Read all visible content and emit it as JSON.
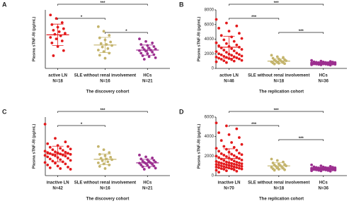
{
  "chart_data": [
    {
      "type": "strip",
      "panel": "A",
      "ylabel": "Plasma sTNF-RI (pg/mL)",
      "xlabel": "The discovery cohort",
      "ylim": [
        2000,
        13500
      ],
      "groups": [
        {
          "name": "active LN",
          "n_label": "N=18",
          "color": "#e31a1c",
          "mean": 8600,
          "sd": 2100,
          "values": [
            12500,
            11800,
            11000,
            10600,
            10100,
            9800,
            9500,
            9200,
            8900,
            8700,
            8400,
            8100,
            7800,
            7400,
            7000,
            6300,
            5500,
            4500
          ]
        },
        {
          "name": "SLE without renal involvement",
          "n_label": "N=16",
          "color": "#c4b46c",
          "mean": 6600,
          "sd": 1500,
          "values": [
            10200,
            9300,
            8500,
            8000,
            7600,
            7200,
            6900,
            6700,
            6500,
            6200,
            5900,
            5600,
            5300,
            5000,
            4600,
            4000
          ]
        },
        {
          "name": "HCs",
          "n_label": "N=21",
          "color": "#9c2f8f",
          "mean": 5600,
          "sd": 1000,
          "values": [
            7800,
            7300,
            7000,
            6700,
            6500,
            6300,
            6100,
            6000,
            5800,
            5700,
            5600,
            5500,
            5400,
            5200,
            5000,
            4900,
            4700,
            4500,
            4300,
            4100,
            3800
          ]
        }
      ],
      "brackets": [
        {
          "from": 0,
          "to": 2,
          "label": "***"
        },
        {
          "from": 0,
          "to": 1,
          "label": "*"
        },
        {
          "from": 1,
          "to": 2,
          "label": "*"
        }
      ]
    },
    {
      "type": "strip",
      "panel": "B",
      "ylabel": "Plasma sTNF-RI (pg/mL)",
      "xlabel": "The replication cohort",
      "ylim": [
        0,
        8000
      ],
      "yticks": [
        0,
        2000,
        4000,
        6000,
        8000
      ],
      "groups": [
        {
          "name": "active LN",
          "n_label": "N=46",
          "color": "#e31a1c",
          "mean": 2900,
          "sd": 1500,
          "values": [
            6700,
            6200,
            5800,
            5500,
            5100,
            4800,
            4500,
            4300,
            4100,
            3900,
            3700,
            3500,
            3400,
            3200,
            3100,
            3000,
            2900,
            2800,
            2700,
            2600,
            2500,
            2400,
            2300,
            2200,
            2100,
            2000,
            1950,
            1900,
            1850,
            1800,
            1700,
            1650,
            1600,
            1550,
            1500,
            1450,
            1400,
            1350,
            1300,
            1250,
            1200,
            1100,
            1050,
            1000,
            900,
            800
          ]
        },
        {
          "name": "SLE without renal involvement",
          "n_label": "N=18",
          "color": "#c4b46c",
          "mean": 1000,
          "sd": 300,
          "values": [
            1800,
            1600,
            1500,
            1400,
            1300,
            1200,
            1150,
            1100,
            1050,
            1000,
            950,
            900,
            850,
            800,
            750,
            700,
            650,
            600
          ]
        },
        {
          "name": "HCs",
          "n_label": "N=36",
          "color": "#9c2f8f",
          "mean": 700,
          "sd": 130,
          "values": [
            1100,
            1000,
            950,
            900,
            880,
            860,
            840,
            820,
            800,
            790,
            780,
            760,
            750,
            740,
            730,
            720,
            710,
            700,
            690,
            680,
            670,
            660,
            650,
            640,
            630,
            620,
            610,
            600,
            590,
            580,
            560,
            540,
            520,
            500,
            480,
            450
          ]
        }
      ],
      "brackets": [
        {
          "from": 0,
          "to": 2,
          "label": "***"
        },
        {
          "from": 0,
          "to": 1,
          "label": "***"
        },
        {
          "from": 1,
          "to": 2,
          "label": "***"
        }
      ]
    },
    {
      "type": "strip",
      "panel": "C",
      "ylabel": "Plasma sTNF-RI (pg/mL)",
      "xlabel": "The discovery cohort",
      "ylim": [
        2000,
        18500
      ],
      "groups": [
        {
          "name": "inactive LN",
          "n_label": "N=42",
          "color": "#e31a1c",
          "mean": 8100,
          "sd": 2200,
          "values": [
            16500,
            12500,
            11500,
            11000,
            10500,
            10200,
            10000,
            9700,
            9500,
            9300,
            9100,
            8900,
            8700,
            8600,
            8500,
            8400,
            8300,
            8200,
            8100,
            8000,
            7900,
            7800,
            7700,
            7600,
            7500,
            7300,
            7100,
            6900,
            6700,
            6500,
            6300,
            6100,
            5900,
            5700,
            5500,
            5300,
            5000,
            4700,
            4400,
            4200,
            4000,
            3800
          ]
        },
        {
          "name": "SLE without renal involvement",
          "n_label": "N=16",
          "color": "#c4b46c",
          "mean": 6600,
          "sd": 1500,
          "values": [
            10200,
            9300,
            8500,
            8000,
            7600,
            7200,
            6900,
            6700,
            6500,
            6200,
            5900,
            5600,
            5300,
            5000,
            4600,
            4000
          ]
        },
        {
          "name": "HCs",
          "n_label": "N=21",
          "color": "#9c2f8f",
          "mean": 5600,
          "sd": 1000,
          "values": [
            7800,
            7300,
            7000,
            6700,
            6500,
            6300,
            6100,
            6000,
            5800,
            5700,
            5600,
            5500,
            5400,
            5200,
            5000,
            4900,
            4700,
            4500,
            4300,
            4100,
            3800
          ]
        }
      ],
      "brackets": [
        {
          "from": 0,
          "to": 2,
          "label": "***"
        },
        {
          "from": 0,
          "to": 1,
          "label": "*"
        }
      ]
    },
    {
      "type": "strip",
      "panel": "D",
      "ylabel": "Plasma sTNF-RI (pg/mL)",
      "xlabel": "The replication cohort",
      "ylim": [
        0,
        6000
      ],
      "yticks": [
        0,
        2000,
        4000,
        6000
      ],
      "groups": [
        {
          "name": "inactive LN",
          "n_label": "N=70",
          "color": "#e31a1c",
          "mean": 1750,
          "sd": 1000,
          "values": [
            5400,
            5100,
            4800,
            4400,
            4200,
            3900,
            3600,
            3400,
            3200,
            3000,
            2900,
            2800,
            2700,
            2600,
            2500,
            2400,
            2300,
            2250,
            2200,
            2150,
            2100,
            2050,
            2000,
            1950,
            1900,
            1850,
            1800,
            1750,
            1700,
            1650,
            1600,
            1550,
            1500,
            1450,
            1400,
            1380,
            1350,
            1320,
            1300,
            1280,
            1250,
            1220,
            1200,
            1180,
            1150,
            1120,
            1100,
            1080,
            1050,
            1020,
            1000,
            980,
            950,
            920,
            900,
            880,
            850,
            820,
            800,
            780,
            750,
            720,
            700,
            680,
            650,
            600,
            550,
            500,
            450,
            350
          ]
        },
        {
          "name": "SLE without renal involvement",
          "n_label": "N=18",
          "color": "#c4b46c",
          "mean": 1000,
          "sd": 320,
          "values": [
            1700,
            1550,
            1400,
            1300,
            1200,
            1150,
            1100,
            1050,
            1000,
            950,
            900,
            850,
            800,
            750,
            700,
            650,
            600,
            550
          ]
        },
        {
          "name": "HCs",
          "n_label": "N=36",
          "color": "#9c2f8f",
          "mean": 700,
          "sd": 130,
          "values": [
            1100,
            1000,
            950,
            900,
            880,
            860,
            840,
            820,
            800,
            790,
            780,
            760,
            750,
            740,
            730,
            720,
            710,
            700,
            690,
            680,
            670,
            660,
            650,
            640,
            630,
            620,
            610,
            600,
            590,
            580,
            560,
            540,
            520,
            500,
            480,
            450
          ]
        }
      ],
      "brackets": [
        {
          "from": 0,
          "to": 2,
          "label": "***"
        },
        {
          "from": 0,
          "to": 1,
          "label": "***"
        },
        {
          "from": 1,
          "to": 2,
          "label": "***"
        }
      ]
    }
  ]
}
